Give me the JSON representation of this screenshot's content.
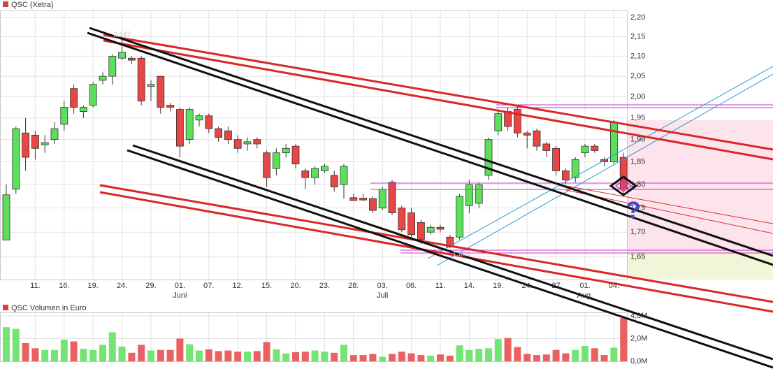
{
  "chart_data": {
    "type": "candlestick",
    "title": "QSC (Xetra)",
    "log_scale": true,
    "grid": true,
    "up_color": "#5ce05c",
    "down_color": "#e84545",
    "categories": [
      null,
      null,
      null,
      "11.",
      null,
      null,
      "16.",
      null,
      null,
      "19.",
      null,
      null,
      "24.",
      null,
      null,
      "29.",
      null,
      null,
      "01.",
      null,
      null,
      "07.",
      null,
      null,
      "12.",
      null,
      null,
      "15.",
      null,
      null,
      "20.",
      null,
      null,
      "23.",
      null,
      null,
      "28.",
      null,
      null,
      "03.",
      null,
      null,
      "06.",
      null,
      null,
      "11.",
      null,
      null,
      "14.",
      null,
      null,
      "19.",
      null,
      null,
      "24.",
      null,
      null,
      "27",
      null,
      null,
      "01.",
      null,
      null,
      "04.",
      null
    ],
    "months": [
      null,
      null,
      null,
      null,
      null,
      null,
      null,
      null,
      null,
      null,
      null,
      null,
      null,
      null,
      null,
      null,
      null,
      null,
      "Juni",
      null,
      null,
      null,
      null,
      null,
      null,
      null,
      null,
      null,
      null,
      null,
      null,
      null,
      null,
      null,
      null,
      null,
      null,
      null,
      null,
      "Juli",
      null,
      null,
      null,
      null,
      null,
      null,
      null,
      null,
      null,
      null,
      null,
      null,
      null,
      null,
      null,
      null,
      null,
      null,
      null,
      null,
      "Aug.",
      null,
      null,
      null,
      null
    ],
    "open": [
      1.684,
      1.79,
      1.915,
      1.91,
      1.888,
      1.9,
      1.935,
      2.02,
      1.965,
      1.98,
      2.04,
      2.05,
      2.095,
      2.095,
      2.095,
      2.025,
      2.05,
      1.98,
      1.97,
      1.9,
      1.945,
      1.955,
      1.925,
      1.92,
      1.9,
      1.89,
      1.9,
      1.87,
      1.835,
      1.87,
      1.885,
      1.83,
      1.815,
      1.83,
      1.82,
      1.8,
      1.772,
      1.771,
      1.77,
      1.75,
      1.805,
      1.75,
      1.74,
      1.72,
      1.7,
      1.71,
      1.69,
      1.69,
      1.755,
      1.76,
      1.82,
      1.92,
      1.965,
      1.97,
      1.915,
      1.92,
      1.89,
      1.88,
      1.83,
      1.815,
      1.87,
      1.885,
      1.855,
      1.85,
      1.86
    ],
    "high": [
      1.8,
      1.93,
      1.95,
      1.92,
      1.91,
      1.94,
      1.99,
      2.03,
      1.98,
      2.035,
      2.06,
      2.105,
      2.147,
      2.1,
      2.1,
      2.04,
      2.05,
      1.985,
      1.975,
      1.975,
      1.96,
      1.96,
      1.93,
      1.93,
      1.91,
      1.905,
      1.905,
      1.875,
      1.88,
      1.89,
      1.89,
      1.835,
      1.84,
      1.845,
      1.83,
      1.845,
      1.78,
      1.78,
      1.775,
      1.795,
      1.81,
      1.755,
      1.75,
      1.725,
      1.715,
      1.715,
      1.695,
      1.78,
      1.81,
      1.805,
      1.905,
      1.97,
      1.975,
      1.98,
      1.92,
      1.925,
      1.895,
      1.885,
      1.835,
      1.86,
      1.89,
      1.89,
      1.86,
      1.945,
      1.87
    ],
    "low": [
      1.684,
      1.78,
      1.83,
      1.855,
      1.87,
      1.89,
      1.92,
      1.96,
      1.95,
      1.975,
      2.03,
      2.03,
      2.09,
      2.08,
      1.98,
      1.99,
      1.96,
      1.965,
      1.86,
      1.89,
      1.93,
      1.915,
      1.895,
      1.89,
      1.87,
      1.875,
      1.88,
      1.795,
      1.82,
      1.86,
      1.835,
      1.79,
      1.8,
      1.825,
      1.785,
      1.77,
      1.765,
      1.765,
      1.74,
      1.745,
      1.735,
      1.7,
      1.69,
      1.675,
      1.695,
      1.7,
      1.668,
      1.685,
      1.74,
      1.75,
      1.81,
      1.91,
      1.92,
      1.905,
      1.88,
      1.875,
      1.86,
      1.82,
      1.8,
      1.805,
      1.86,
      1.87,
      1.84,
      1.845,
      1.775
    ],
    "close": [
      1.778,
      1.925,
      1.86,
      1.88,
      1.893,
      1.925,
      1.975,
      1.975,
      1.975,
      2.03,
      2.05,
      2.1,
      2.11,
      2.09,
      1.99,
      2.03,
      1.975,
      1.975,
      1.885,
      1.97,
      1.955,
      1.925,
      1.905,
      1.9,
      1.88,
      1.895,
      1.89,
      1.815,
      1.87,
      1.88,
      1.845,
      1.815,
      1.835,
      1.84,
      1.795,
      1.84,
      1.766,
      1.767,
      1.745,
      1.79,
      1.74,
      1.705,
      1.695,
      1.685,
      1.71,
      1.706,
      1.67,
      1.775,
      1.8,
      1.8,
      1.9,
      1.96,
      1.93,
      1.915,
      1.91,
      1.885,
      1.875,
      1.83,
      1.81,
      1.855,
      1.885,
      1.875,
      1.85,
      1.94,
      1.79
    ],
    "ylim": [
      1.606,
      2.2185
    ],
    "yticks": [
      {
        "value": 2.2,
        "label": "2,20"
      },
      {
        "value": 2.15,
        "label": "2,15"
      },
      {
        "value": 2.1,
        "label": "2,10"
      },
      {
        "value": 2.05,
        "label": "2,05"
      },
      {
        "value": 2.0,
        "label": "2,00"
      },
      {
        "value": 1.95,
        "label": "1,95"
      },
      {
        "value": 1.9,
        "label": "1,90"
      },
      {
        "value": 1.85,
        "label": "1,85"
      },
      {
        "value": 1.8,
        "label": "1,80"
      },
      {
        "value": 1.75,
        "label": "1,75"
      },
      {
        "value": 1.7,
        "label": "1,70"
      },
      {
        "value": 1.65,
        "label": "1,65"
      }
    ],
    "annotations": {
      "high": {
        "value": 2.147,
        "label": "2,147"
      },
      "low": {
        "value": 1.668,
        "label": "1,668"
      },
      "marker": "?"
    },
    "volume": {
      "title": "QSC Volumen in Euro",
      "values": [
        3.0,
        2.85,
        1.6,
        1.15,
        1.0,
        1.0,
        1.9,
        1.75,
        1.1,
        1.0,
        1.45,
        2.55,
        1.3,
        0.75,
        1.45,
        0.95,
        1.0,
        1.0,
        2.0,
        1.5,
        0.95,
        1.05,
        0.9,
        0.95,
        0.85,
        0.85,
        0.9,
        1.7,
        1.05,
        0.7,
        0.8,
        0.85,
        0.95,
        0.85,
        0.75,
        1.45,
        0.55,
        0.55,
        0.65,
        0.4,
        0.65,
        0.85,
        0.7,
        0.55,
        0.5,
        0.6,
        0.5,
        1.4,
        1.0,
        1.1,
        1.15,
        1.95,
        2.05,
        1.25,
        0.65,
        0.55,
        0.6,
        1.0,
        0.7,
        1.0,
        1.35,
        1.15,
        0.55,
        1.2,
        3.8
      ],
      "ylim": [
        0,
        4.3
      ],
      "yticks": [
        {
          "value": 4,
          "label": "4,0M"
        },
        {
          "value": 2,
          "label": "2,0M"
        },
        {
          "value": 0,
          "label": "0,0M"
        }
      ]
    }
  }
}
